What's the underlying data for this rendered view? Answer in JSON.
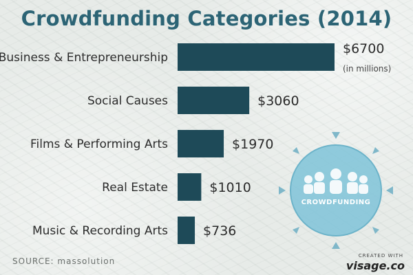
{
  "chart_data": {
    "type": "bar",
    "orientation": "horizontal",
    "title": "Crowdfunding Categories (2014)",
    "categories": [
      "Business & Entrepreneurship",
      "Social Causes",
      "Films & Performing Arts",
      "Real Estate",
      "Music & Recording Arts"
    ],
    "values": [
      6700,
      3060,
      1970,
      1010,
      736
    ],
    "value_labels": [
      "$6700",
      "$3060",
      "$1970",
      "$1010",
      "$736"
    ],
    "unit_note": "(in millions)",
    "xlim": [
      0,
      6700
    ],
    "grid": false,
    "bar_color": "#1e4a58"
  },
  "badge": {
    "text": "CROWDFUNDING",
    "color": "#7fc3d8"
  },
  "footer": {
    "source": "SOURCE: massolution",
    "created_with": "CREATED WITH",
    "logo": "visage.co"
  },
  "colors": {
    "title": "#2c6475",
    "background": "#e7ebe8"
  }
}
